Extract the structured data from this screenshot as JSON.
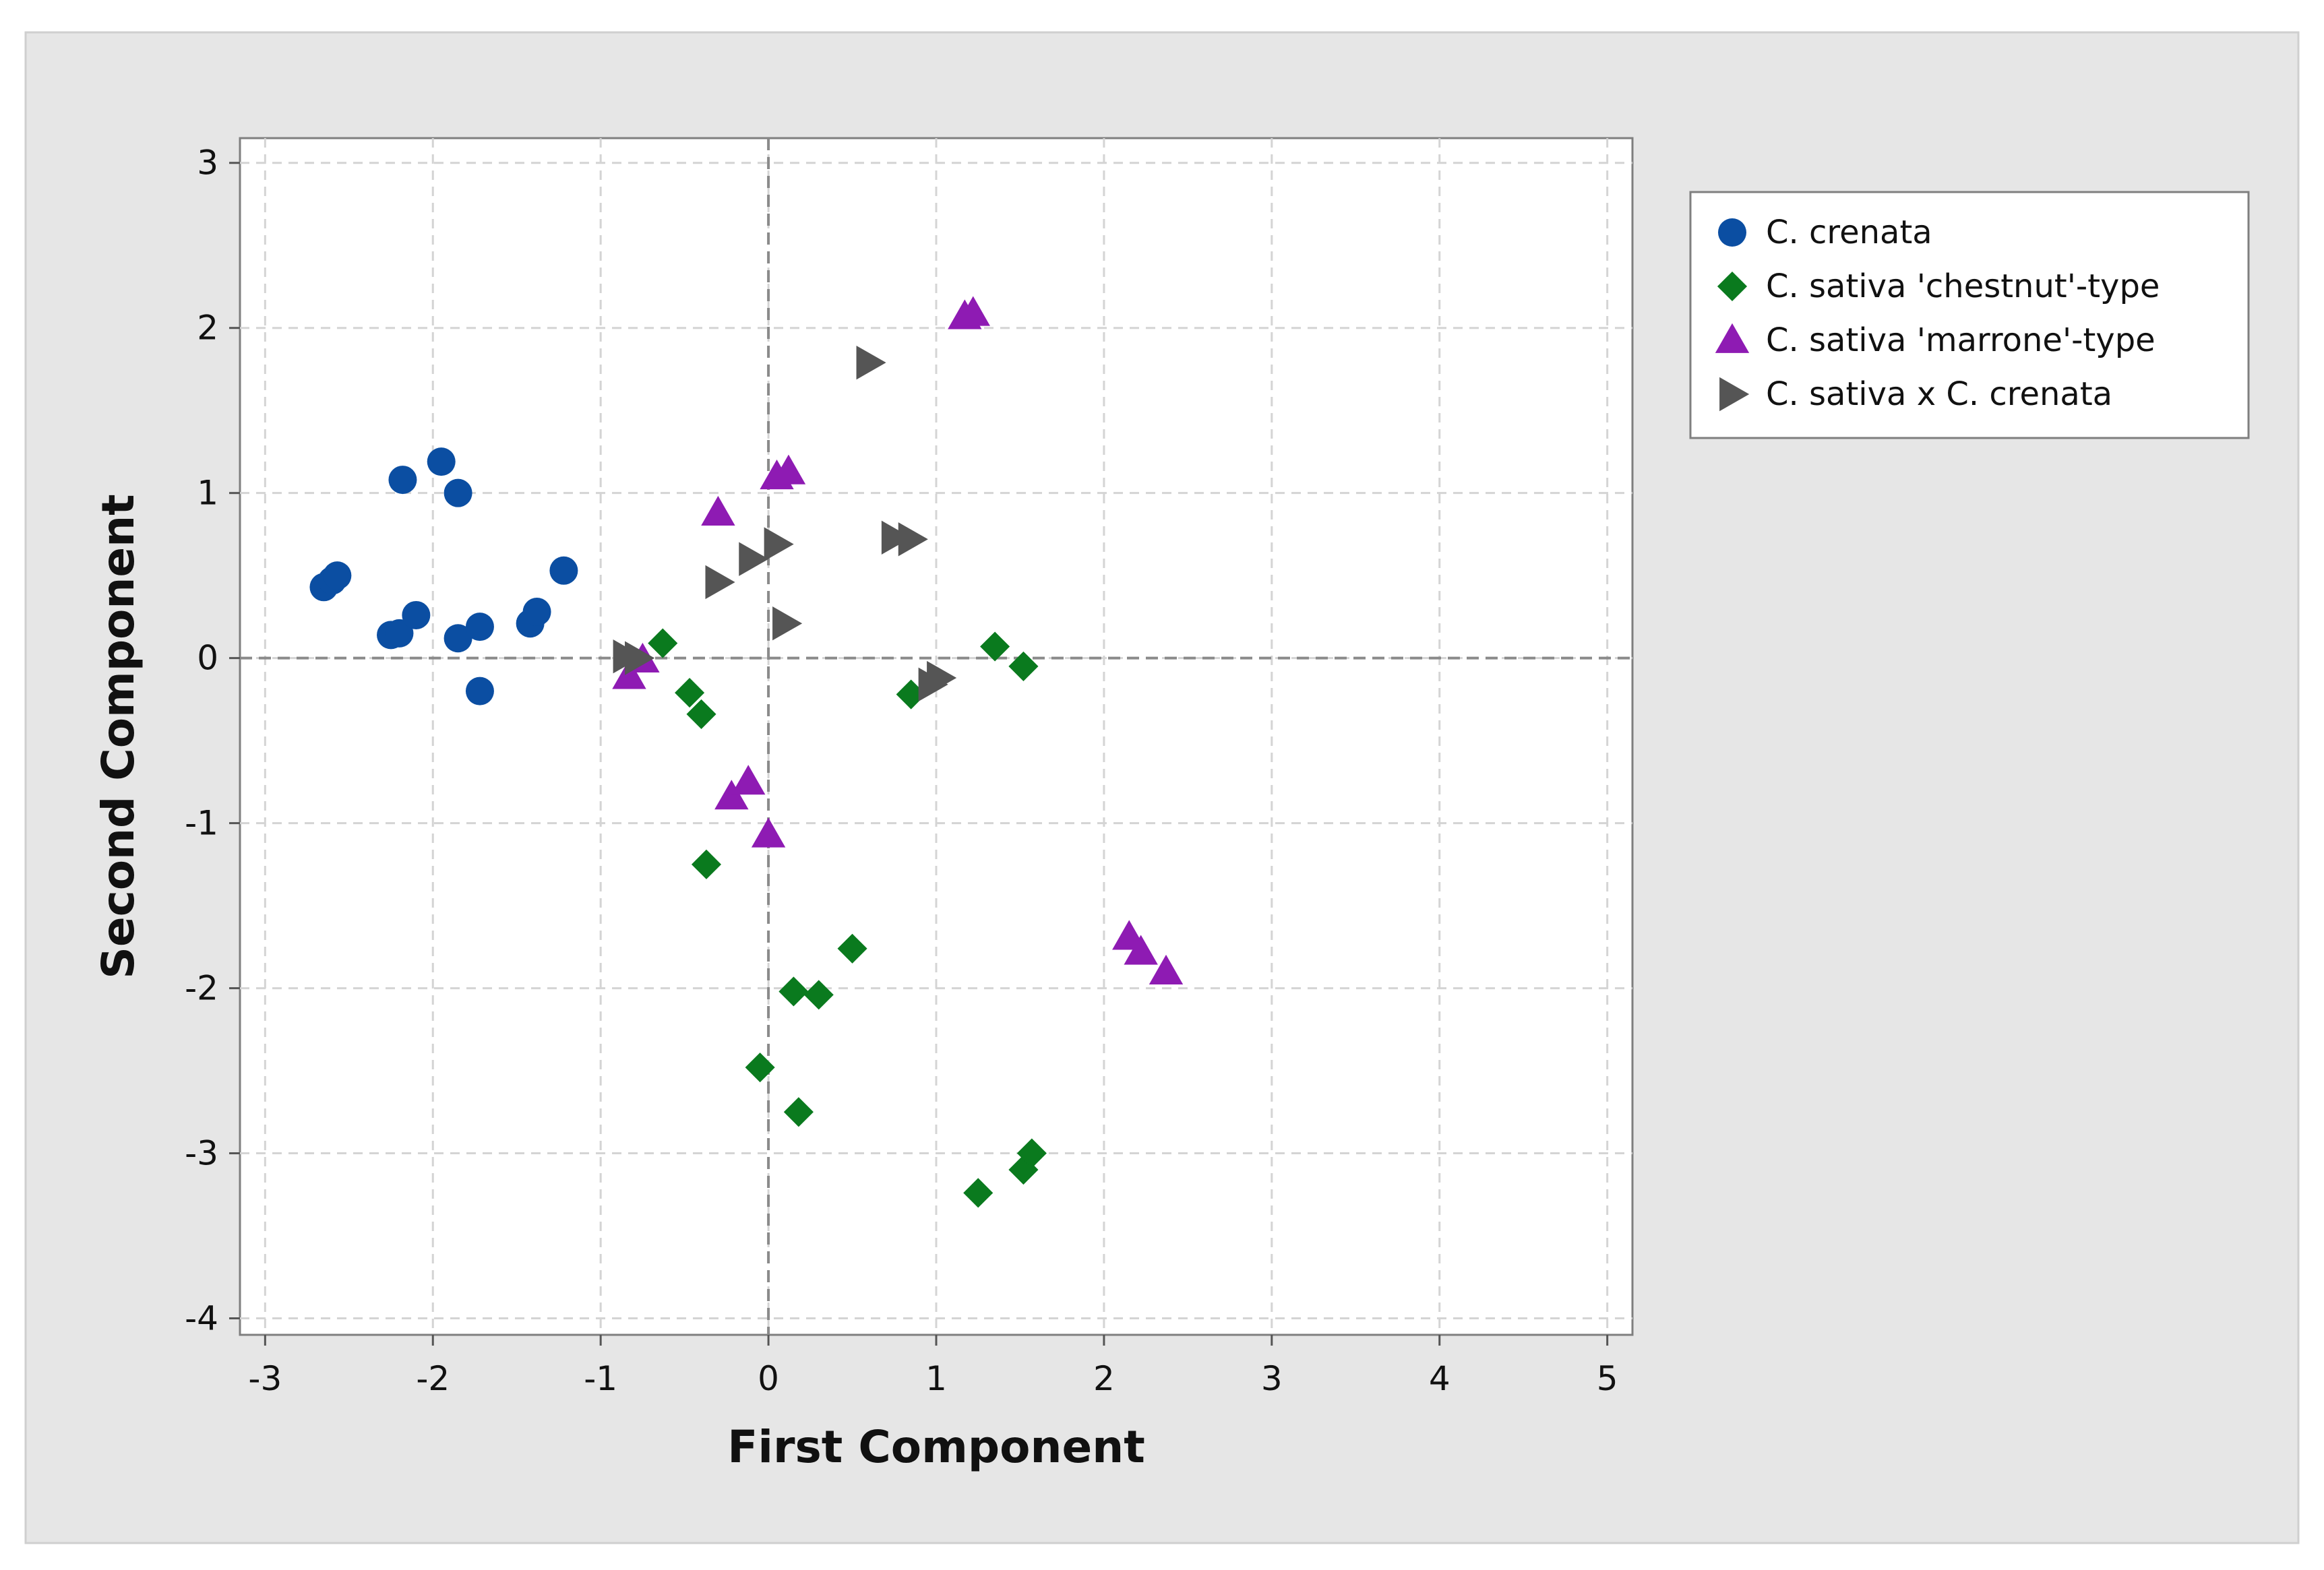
{
  "chart_data": {
    "type": "scatter",
    "title": "",
    "xlabel": "First Component",
    "ylabel": "Second Component",
    "xlim": [
      -3.15,
      5.15
    ],
    "ylim": [
      -4.1,
      3.15
    ],
    "xticks": [
      -3,
      -2,
      -1,
      0,
      1,
      2,
      3,
      4,
      5
    ],
    "yticks": [
      -4,
      -3,
      -2,
      -1,
      0,
      1,
      2,
      3
    ],
    "grid": true,
    "reference_lines": {
      "x": 0,
      "y": 0
    },
    "legend_position": "right",
    "colors": {
      "frame_bg": "#e6e6e6",
      "plot_bg": "#ffffff"
    },
    "series": [
      {
        "name": "C. crenata",
        "marker": "circle",
        "color": "#0b4ea2",
        "points": [
          [
            -2.65,
            0.43
          ],
          [
            -2.6,
            0.47
          ],
          [
            -2.57,
            0.5
          ],
          [
            -2.25,
            0.14
          ],
          [
            -2.2,
            0.15
          ],
          [
            -2.18,
            1.08
          ],
          [
            -2.1,
            0.26
          ],
          [
            -1.95,
            1.19
          ],
          [
            -1.85,
            1.0
          ],
          [
            -1.85,
            0.12
          ],
          [
            -1.72,
            0.19
          ],
          [
            -1.72,
            -0.2
          ],
          [
            -1.42,
            0.21
          ],
          [
            -1.38,
            0.28
          ],
          [
            -1.22,
            0.53
          ]
        ]
      },
      {
        "name": "C. sativa 'chestnut'-type",
        "marker": "diamond",
        "color": "#0a7a1e",
        "points": [
          [
            -0.63,
            0.09
          ],
          [
            -0.47,
            -0.21
          ],
          [
            -0.4,
            -0.34
          ],
          [
            -0.37,
            -1.25
          ],
          [
            -0.05,
            -2.48
          ],
          [
            0.15,
            -2.02
          ],
          [
            0.18,
            -2.75
          ],
          [
            0.3,
            -2.04
          ],
          [
            0.5,
            -1.76
          ],
          [
            0.85,
            -0.22
          ],
          [
            1.35,
            0.07
          ],
          [
            1.52,
            -0.05
          ],
          [
            1.25,
            -3.24
          ],
          [
            1.52,
            -3.1
          ],
          [
            1.57,
            -3.0
          ]
        ]
      },
      {
        "name": "C. sativa 'marrone'-type",
        "marker": "triangle",
        "color": "#8e1bb3",
        "points": [
          [
            -0.83,
            -0.11
          ],
          [
            -0.75,
            -0.01
          ],
          [
            -0.3,
            0.88
          ],
          [
            -0.22,
            -0.84
          ],
          [
            -0.12,
            -0.75
          ],
          [
            0.0,
            -1.07
          ],
          [
            0.05,
            1.1
          ],
          [
            0.12,
            1.13
          ],
          [
            1.17,
            2.07
          ],
          [
            1.22,
            2.09
          ],
          [
            2.15,
            -1.69
          ],
          [
            2.22,
            -1.78
          ],
          [
            2.37,
            -1.9
          ]
        ]
      },
      {
        "name": "C. sativa x C. crenata",
        "marker": "triangle-right",
        "color": "#555555",
        "points": [
          [
            -0.85,
            0.01
          ],
          [
            -0.78,
            0.0
          ],
          [
            -0.3,
            0.46
          ],
          [
            -0.1,
            0.6
          ],
          [
            0.05,
            0.69
          ],
          [
            0.1,
            0.21
          ],
          [
            0.6,
            1.79
          ],
          [
            0.75,
            0.73
          ],
          [
            0.85,
            0.72
          ],
          [
            0.97,
            -0.16
          ],
          [
            1.02,
            -0.12
          ]
        ]
      }
    ]
  }
}
